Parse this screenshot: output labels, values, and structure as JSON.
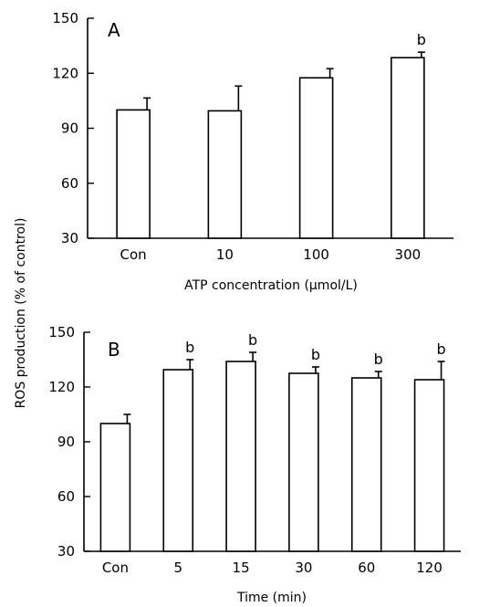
{
  "ylabel_shared": "ROS production (% of control)",
  "chart_data": [
    {
      "type": "bar",
      "panel": "A",
      "xlabel": "ATP concentration (μmol/L)",
      "categories": [
        "Con",
        "10",
        "100",
        "300"
      ],
      "values": [
        100,
        99.5,
        117.5,
        128.5
      ],
      "errors": [
        6.5,
        13.5,
        5,
        3
      ],
      "annotations": [
        "",
        "",
        "",
        "b"
      ],
      "ylim": [
        30,
        150
      ],
      "yticks": [
        "30",
        "60",
        "90",
        "120",
        "150"
      ],
      "bar_color": "#ffffff",
      "stroke_color": "#000000"
    },
    {
      "type": "bar",
      "panel": "B",
      "xlabel": "Time (min)",
      "categories": [
        "Con",
        "5",
        "15",
        "30",
        "60",
        "120"
      ],
      "values": [
        100,
        129.5,
        134,
        127.5,
        125,
        124
      ],
      "errors": [
        5,
        5.5,
        5,
        3.5,
        3.5,
        10
      ],
      "annotations": [
        "",
        "b",
        "b",
        "b",
        "b",
        "b"
      ],
      "ylim": [
        30,
        150
      ],
      "yticks": [
        "30",
        "60",
        "90",
        "120",
        "150"
      ],
      "bar_color": "#ffffff",
      "stroke_color": "#000000"
    }
  ]
}
